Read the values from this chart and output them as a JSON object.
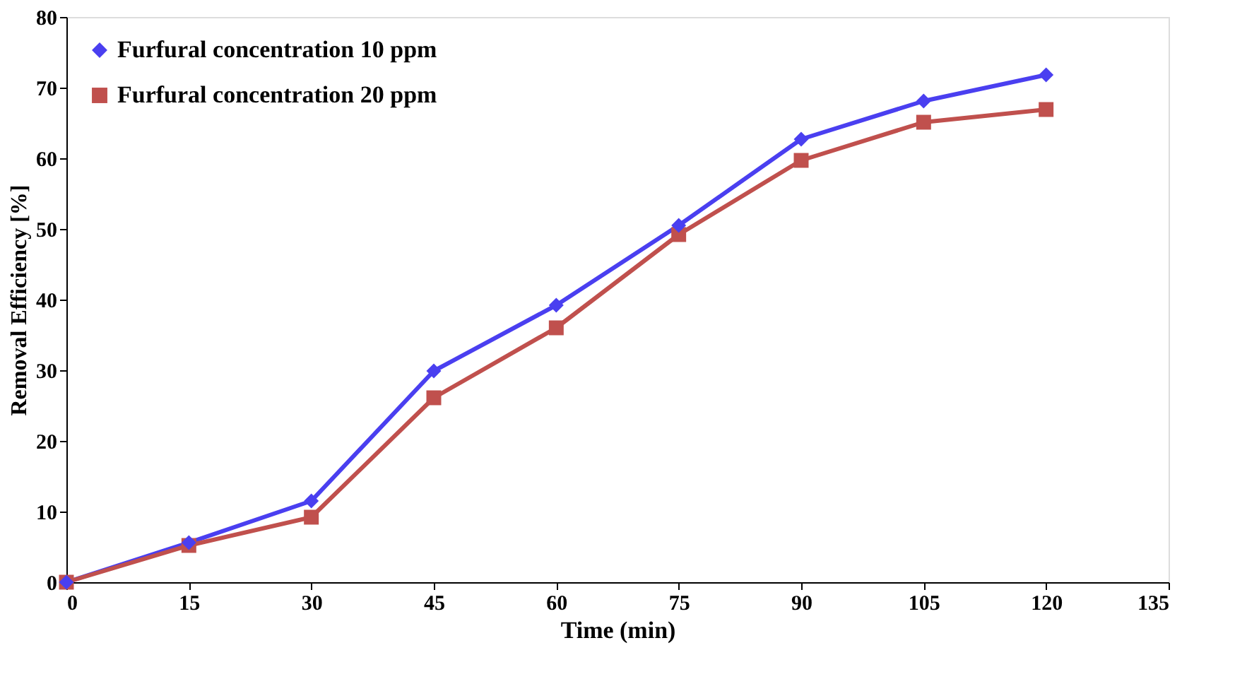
{
  "chart_data": {
    "type": "line",
    "xlabel": "Time  (min)",
    "ylabel": "Removal Efficiency [%]",
    "x": [
      0,
      15,
      30,
      45,
      60,
      75,
      90,
      105,
      120
    ],
    "series": [
      {
        "name": "Furfural concentration 10 ppm",
        "color": "#4a3ff0",
        "marker": "diamond",
        "values": [
          0,
          5.6,
          11.5,
          29.9,
          39.2,
          50.5,
          62.7,
          68.1,
          71.8
        ]
      },
      {
        "name": "Furfural concentration 20 ppm",
        "color": "#c0504d",
        "marker": "square",
        "values": [
          0,
          5.2,
          9.2,
          26.1,
          36.0,
          49.2,
          59.7,
          65.1,
          66.9
        ]
      }
    ],
    "xlim": [
      0,
      135
    ],
    "xticks": [
      0,
      15,
      30,
      45,
      60,
      75,
      90,
      105,
      120,
      135
    ],
    "ylim": [
      0,
      80
    ],
    "yticks": [
      0,
      10,
      20,
      30,
      40,
      50,
      60,
      70,
      80
    ],
    "grid": false,
    "legend": "top left",
    "line_style": "solid"
  }
}
